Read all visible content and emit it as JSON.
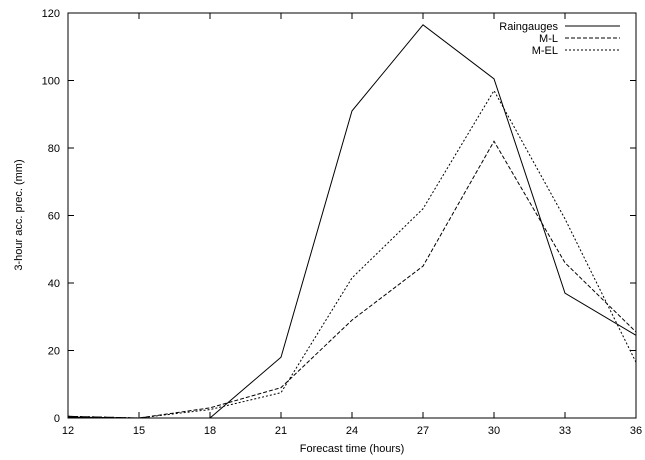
{
  "chart_data": {
    "type": "line",
    "title": "",
    "xlabel": "Forecast time (hours)",
    "ylabel": "3-hour acc. prec. (mm)",
    "xlim": [
      12,
      36
    ],
    "ylim": [
      0,
      120
    ],
    "xticks": [
      12,
      15,
      18,
      21,
      24,
      27,
      30,
      33,
      36
    ],
    "yticks": [
      0,
      20,
      40,
      60,
      80,
      100,
      120
    ],
    "grid": false,
    "legend_position": "top-right",
    "x": [
      12,
      15,
      18,
      21,
      24,
      27,
      30,
      33,
      36
    ],
    "series": [
      {
        "name": "Raingauges",
        "style": "solid",
        "values": [
          0.3,
          0,
          0,
          18,
          91,
          116.5,
          100.5,
          37,
          24.5
        ]
      },
      {
        "name": "M-L",
        "style": "dashed",
        "values": [
          0.5,
          0,
          3,
          9,
          29,
          45,
          82,
          46,
          25.5
        ]
      },
      {
        "name": "M-EL",
        "style": "dotted",
        "values": [
          0.5,
          0,
          2.5,
          7.5,
          41.5,
          62,
          97,
          59,
          16.5
        ]
      }
    ]
  }
}
